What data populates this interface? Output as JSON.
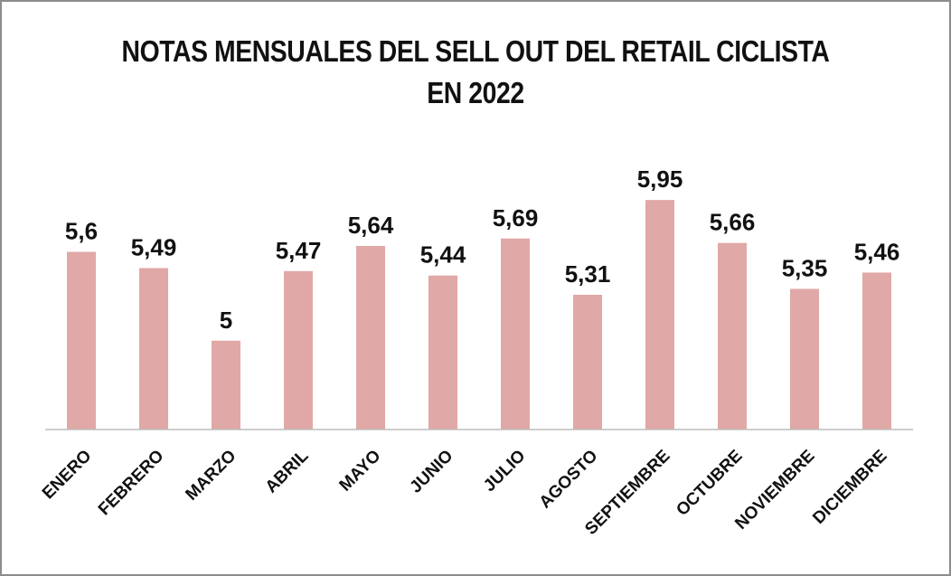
{
  "chart_data": {
    "type": "bar",
    "title_line1": "NOTAS MENSUALES DEL SELL OUT DEL RETAIL CICLISTA",
    "title_line2": "EN 2022",
    "categories": [
      "ENERO",
      "FEBRERO",
      "MARZO",
      "ABRIL",
      "MAYO",
      "JUNIO",
      "JULIO",
      "AGOSTO",
      "SEPTIEMBRE",
      "OCTUBRE",
      "NOVIEMBRE",
      "DICIEMBRE"
    ],
    "values": [
      5.6,
      5.49,
      5,
      5.47,
      5.64,
      5.44,
      5.69,
      5.31,
      5.95,
      5.66,
      5.35,
      5.46
    ],
    "value_labels": [
      "5,6",
      "5,49",
      "5",
      "5,47",
      "5,64",
      "5,44",
      "5,69",
      "5,31",
      "5,95",
      "5,66",
      "5,35",
      "5,46"
    ],
    "ylim": [
      4.4,
      6.0
    ],
    "bar_color": "#e0a8a6",
    "grid": false,
    "legend": "none"
  }
}
